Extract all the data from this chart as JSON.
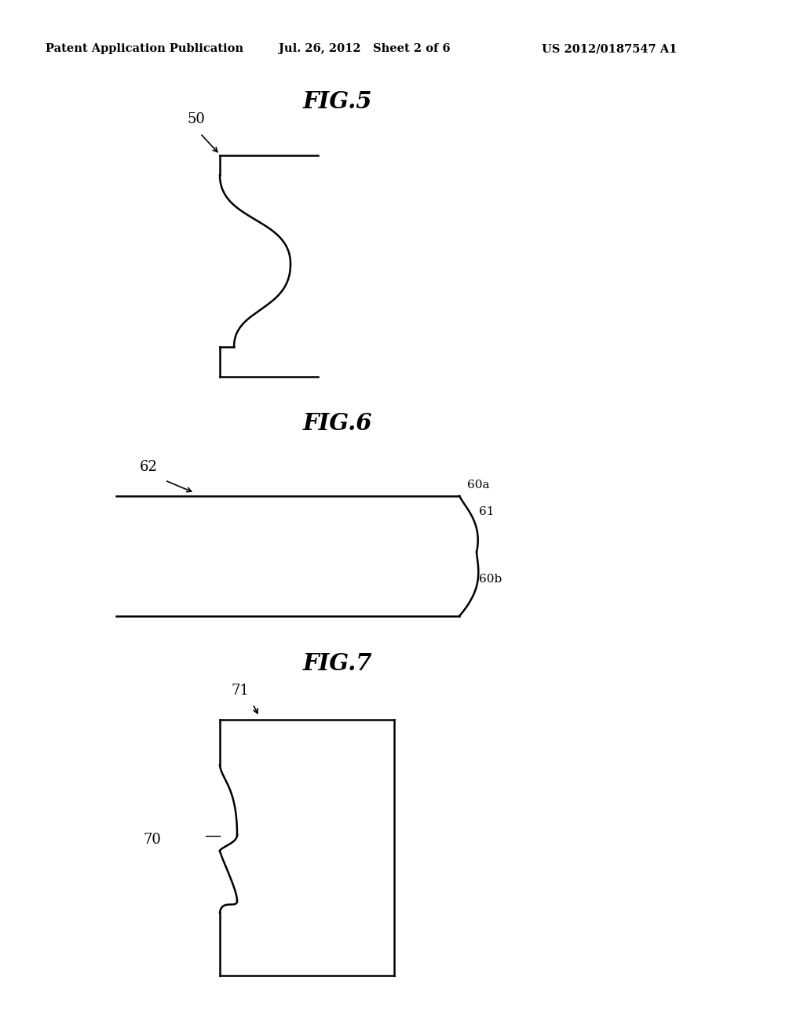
{
  "bg_color": "#ffffff",
  "text_color": "#000000",
  "header_left": "Patent Application Publication",
  "header_mid": "Jul. 26, 2012   Sheet 2 of 6",
  "header_right": "US 2012/0187547 A1",
  "fig5_title": "FIG.5",
  "fig6_title": "FIG.6",
  "fig7_title": "FIG.7",
  "label_50": "50",
  "label_62": "62",
  "label_60a": "60a",
  "label_61": "61",
  "label_60b": "60b",
  "label_71": "71",
  "label_70": "70",
  "lw": 1.8
}
